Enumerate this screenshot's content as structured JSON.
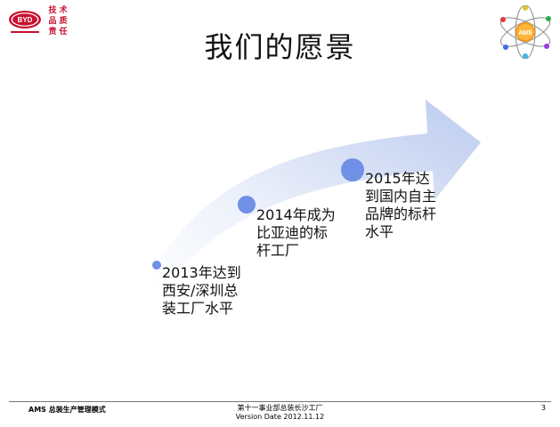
{
  "slide": {
    "title": "我们的愿景",
    "page_number": "3"
  },
  "logos": {
    "byd_text": "BYD",
    "seal_chars": [
      "技",
      "术",
      "品",
      "质",
      "责",
      "任"
    ],
    "ams_text": "AMS"
  },
  "milestones": [
    {
      "text": "2013年达到\n西安/深圳总\n装工厂水平"
    },
    {
      "text": "2014年成为\n比亚迪的标\n杆工厂"
    },
    {
      "text": "2015年达\n到国内自主\n品牌的标杆\n水平"
    }
  ],
  "footer": {
    "left": "AMS 总装生产管理模式",
    "center_line1": "第十一事业部总装长沙工厂",
    "center_line2": "Version Date 2012.11.12"
  },
  "colors": {
    "arrow_light": "#ffffff",
    "arrow_dark": "#c7d3f1",
    "dot": "#6f90e6",
    "brand_red": "#c8102e",
    "ams_orange": "#f59a1b"
  }
}
